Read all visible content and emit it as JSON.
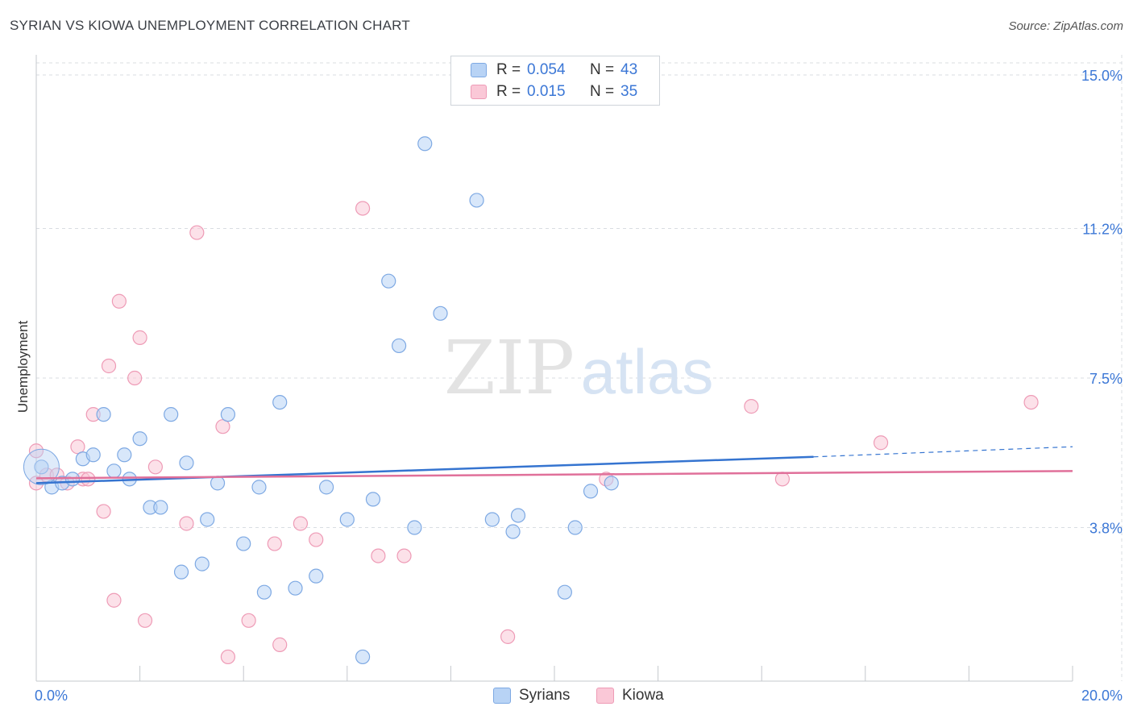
{
  "header": {
    "title": "SYRIAN VS KIOWA UNEMPLOYMENT CORRELATION CHART",
    "source": "Source: ZipAtlas.com"
  },
  "watermark": {
    "zip": "ZIP",
    "atlas": "atlas"
  },
  "legend": {
    "rows": [
      {
        "r_label": "R =",
        "r_value": "0.054",
        "n_label": "N =",
        "n_value": "43",
        "fill": "#b8d3f5",
        "stroke": "#7ea9e3"
      },
      {
        "r_label": "R =",
        "r_value": "0.015",
        "n_label": "N =",
        "n_value": "35",
        "fill": "#fac8d7",
        "stroke": "#ee9bb6"
      }
    ]
  },
  "bottom_legend": {
    "syrians": "Syrians",
    "kiowa": "Kiowa"
  },
  "colors": {
    "syrians_fill": "#b8d3f5",
    "syrians_stroke": "#7ea9e3",
    "syrians_line": "#3574d0",
    "kiowa_fill": "#fac8d7",
    "kiowa_stroke": "#ee9bb6",
    "kiowa_line": "#e0709a",
    "axis_label": "#3b77d6",
    "grid": "#d9dde2"
  },
  "chart_data": {
    "type": "scatter",
    "title": "SYRIAN VS KIOWA UNEMPLOYMENT CORRELATION CHART",
    "xlabel": "",
    "ylabel": "Unemployment",
    "xlim": [
      0,
      20
    ],
    "ylim": [
      0,
      15.3
    ],
    "x_tick_labels": [
      "0.0%",
      "20.0%"
    ],
    "y_ticks": [
      3.8,
      7.5,
      11.2,
      15.0
    ],
    "y_tick_labels": [
      "3.8%",
      "7.5%",
      "11.2%",
      "15.0%"
    ],
    "grid": true,
    "series": [
      {
        "name": "Syrians",
        "r": 0.054,
        "n": 43,
        "trend": {
          "x": [
            0,
            15.0
          ],
          "y": [
            4.9,
            5.55
          ],
          "dashed_to": [
            20,
            5.8
          ]
        },
        "points": [
          [
            0.1,
            5.3
          ],
          [
            0.3,
            4.8
          ],
          [
            0.5,
            4.9
          ],
          [
            0.7,
            5.0
          ],
          [
            0.9,
            5.5
          ],
          [
            1.1,
            5.6
          ],
          [
            1.3,
            6.6
          ],
          [
            1.5,
            5.2
          ],
          [
            1.7,
            5.6
          ],
          [
            1.8,
            5.0
          ],
          [
            2.0,
            6.0
          ],
          [
            2.2,
            4.3
          ],
          [
            2.4,
            4.3
          ],
          [
            2.6,
            6.6
          ],
          [
            2.8,
            2.7
          ],
          [
            2.9,
            5.4
          ],
          [
            3.2,
            2.9
          ],
          [
            3.3,
            4.0
          ],
          [
            3.5,
            4.9
          ],
          [
            3.7,
            6.6
          ],
          [
            4.0,
            3.4
          ],
          [
            4.3,
            4.8
          ],
          [
            4.4,
            2.2
          ],
          [
            4.7,
            6.9
          ],
          [
            5.0,
            2.3
          ],
          [
            5.4,
            2.6
          ],
          [
            5.6,
            4.8
          ],
          [
            6.0,
            4.0
          ],
          [
            6.3,
            0.6
          ],
          [
            6.5,
            4.5
          ],
          [
            6.8,
            9.9
          ],
          [
            7.0,
            8.3
          ],
          [
            7.3,
            3.8
          ],
          [
            7.5,
            13.3
          ],
          [
            7.8,
            9.1
          ],
          [
            8.5,
            11.9
          ],
          [
            8.8,
            4.0
          ],
          [
            9.2,
            3.7
          ],
          [
            9.3,
            4.1
          ],
          [
            10.2,
            2.2
          ],
          [
            10.4,
            3.8
          ],
          [
            10.7,
            4.7
          ],
          [
            11.1,
            4.9
          ]
        ]
      },
      {
        "name": "Kiowa",
        "r": 0.015,
        "n": 35,
        "trend": {
          "x": [
            0,
            20
          ],
          "y": [
            5.02,
            5.2
          ]
        },
        "points": [
          [
            0.0,
            5.7
          ],
          [
            0.2,
            5.1
          ],
          [
            0.4,
            5.1
          ],
          [
            0.6,
            4.9
          ],
          [
            0.8,
            5.8
          ],
          [
            0.9,
            5.0
          ],
          [
            1.0,
            5.0
          ],
          [
            1.1,
            6.6
          ],
          [
            1.3,
            4.2
          ],
          [
            1.4,
            7.8
          ],
          [
            1.5,
            2.0
          ],
          [
            1.6,
            9.4
          ],
          [
            1.9,
            7.5
          ],
          [
            2.0,
            8.5
          ],
          [
            2.1,
            1.5
          ],
          [
            2.3,
            5.3
          ],
          [
            2.9,
            3.9
          ],
          [
            3.1,
            11.1
          ],
          [
            3.6,
            6.3
          ],
          [
            3.7,
            0.6
          ],
          [
            4.1,
            1.5
          ],
          [
            4.6,
            3.4
          ],
          [
            4.7,
            0.9
          ],
          [
            5.1,
            3.9
          ],
          [
            5.4,
            3.5
          ],
          [
            6.3,
            11.7
          ],
          [
            6.6,
            3.1
          ],
          [
            7.1,
            3.1
          ],
          [
            9.1,
            1.1
          ],
          [
            11.0,
            5.0
          ],
          [
            13.8,
            6.8
          ],
          [
            14.4,
            5.0
          ],
          [
            16.3,
            5.9
          ],
          [
            19.2,
            6.9
          ],
          [
            0.0,
            4.9
          ]
        ]
      }
    ]
  }
}
